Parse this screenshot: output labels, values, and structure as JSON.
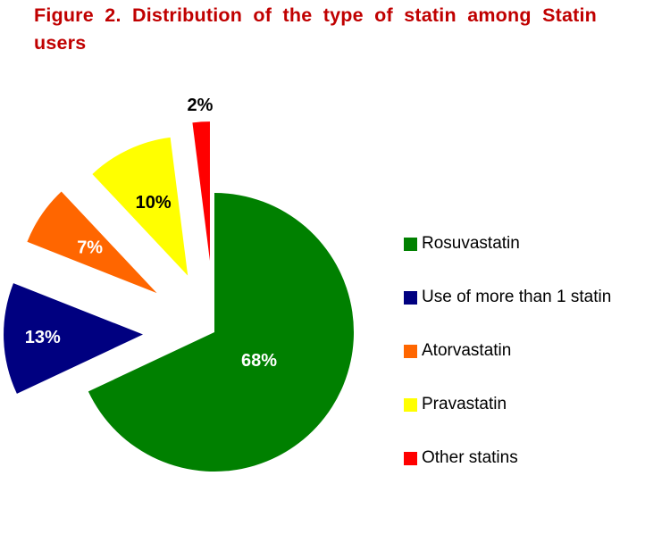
{
  "title": "Figure 2. Distribution of the type of statin among Statin users",
  "chart_data": {
    "type": "pie",
    "title": "Figure 2. Distribution of the type of statin among Statin users",
    "legend_position": "right",
    "exploded": true,
    "slices": [
      {
        "name": "Rosuvastatin",
        "value": 68,
        "label": "68%",
        "color": "#008000"
      },
      {
        "name": "Use of more than 1 statin",
        "value": 13,
        "label": "13%",
        "color": "#000080"
      },
      {
        "name": "Atorvastatin",
        "value": 7,
        "label": "7%",
        "color": "#ff6600"
      },
      {
        "name": "Pravastatin",
        "value": 10,
        "label": "10%",
        "color": "#ffff00"
      },
      {
        "name": "Other statins",
        "value": 2,
        "label": "2%",
        "color": "#ff0000"
      }
    ]
  }
}
